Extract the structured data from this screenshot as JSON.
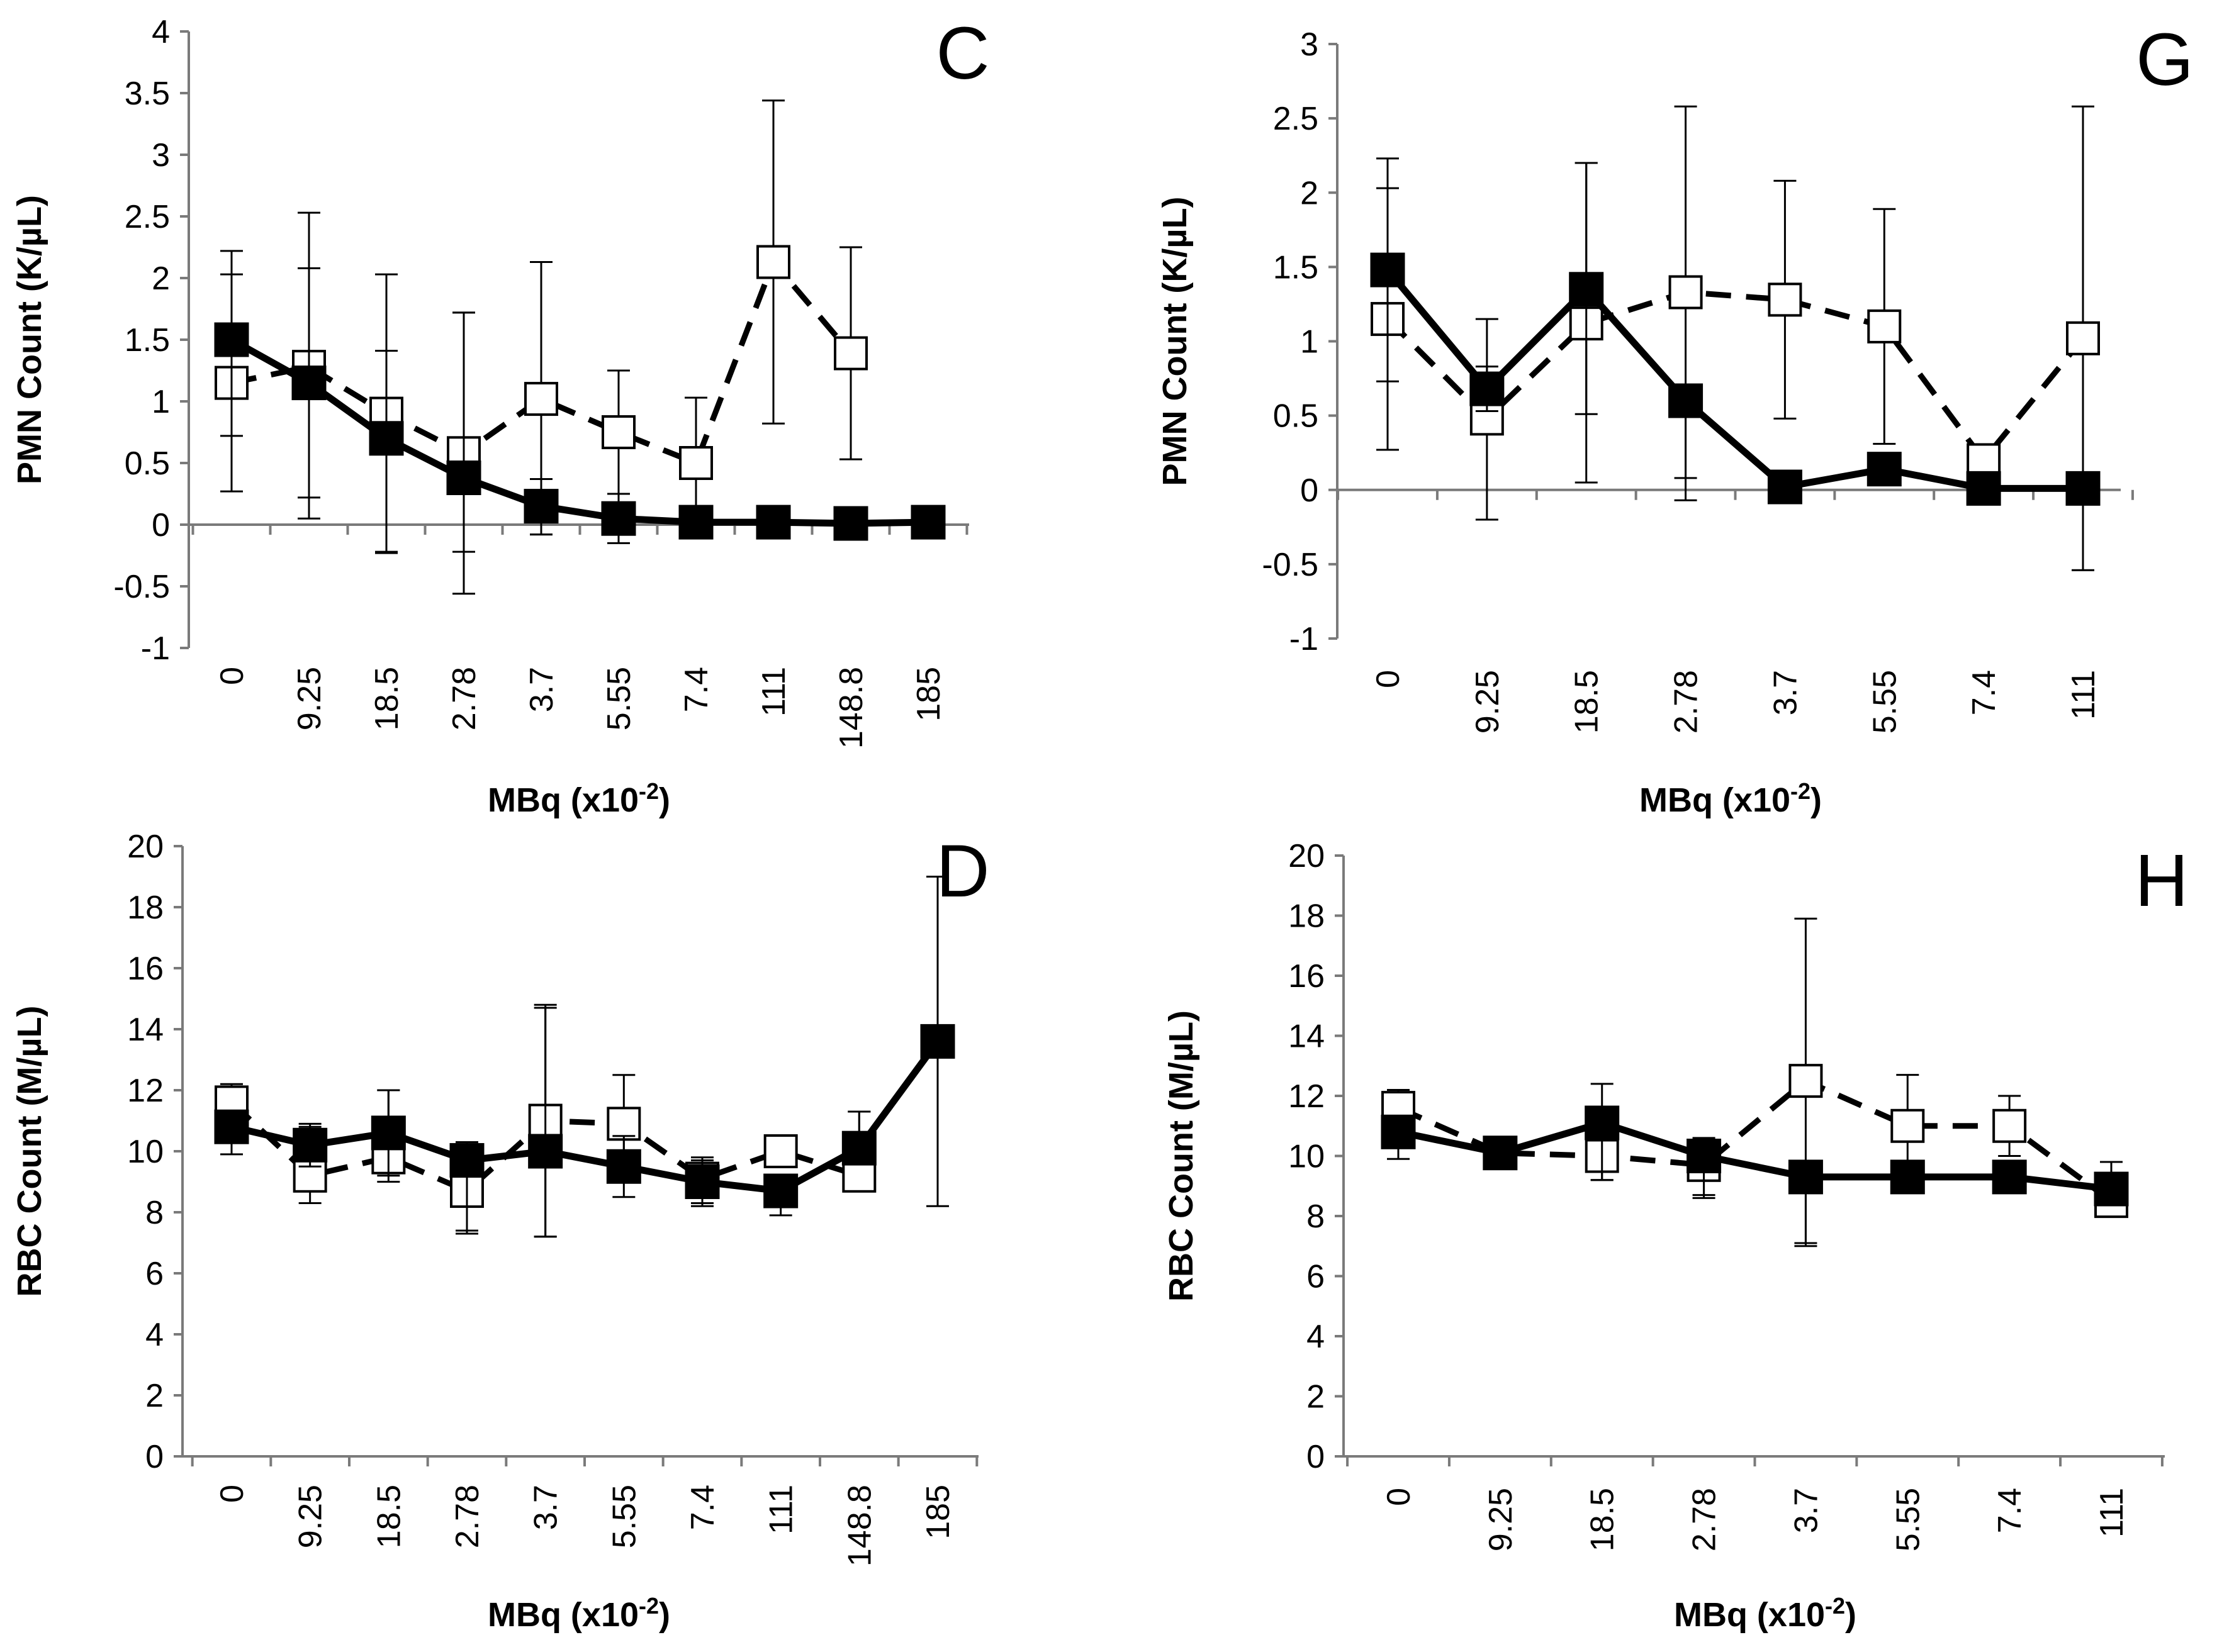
{
  "chart_data": [
    {
      "id": "C",
      "type": "line",
      "panel_label": "C",
      "ylabel": "PMN Count (K/µL)",
      "xlabel_main": "MBq (x10",
      "xlabel_exp": "-2",
      "xlabel_close": ")",
      "categories": [
        "0",
        "9.25",
        "18.5",
        "2.78",
        "3.7",
        "5.55",
        "7.4",
        "111",
        "148.8",
        "185"
      ],
      "ylim": [
        -1,
        4
      ],
      "yticks": [
        "-1",
        "-0.5",
        "0",
        "0.5",
        "1",
        "1.5",
        "2",
        "2.5",
        "3",
        "3.5",
        "4"
      ],
      "series": [
        {
          "name": "filled",
          "style": "solid",
          "marker": "filled",
          "values": [
            1.5,
            1.15,
            0.7,
            0.38,
            0.15,
            0.05,
            0.02,
            0.02,
            0.01,
            0.02
          ],
          "err_up": [
            0.72,
            0.93,
            0.71,
            1.34,
            0.22,
            0.2,
            0.0,
            0.0,
            0.0,
            0.0
          ],
          "err_down": [
            0.78,
            0.93,
            0.92,
            0.94,
            0.23,
            0.2,
            0.0,
            0.0,
            0.0,
            0.0
          ]
        },
        {
          "name": "open",
          "style": "dashed",
          "marker": "open",
          "values": [
            1.15,
            1.28,
            0.9,
            0.58,
            1.02,
            0.75,
            0.5,
            2.13,
            1.39,
            null
          ],
          "err_up": [
            0.88,
            1.25,
            1.13,
            1.14,
            1.11,
            0.5,
            0.53,
            1.31,
            0.86,
            null
          ],
          "err_down": [
            0.88,
            1.23,
            1.13,
            0.8,
            1.1,
            0.5,
            0.53,
            1.31,
            0.86,
            null
          ]
        }
      ]
    },
    {
      "id": "G",
      "type": "line",
      "panel_label": "G",
      "ylabel": "PMN Count (K/µL)",
      "xlabel_main": "MBq (x10",
      "xlabel_exp": "-2",
      "xlabel_close": ")",
      "categories": [
        "0",
        "9.25",
        "18.5",
        "2.78",
        "3.7",
        "5.55",
        "7.4",
        "111"
      ],
      "ylim": [
        -1,
        3
      ],
      "yticks": [
        "-1",
        "-0.5",
        "0",
        "0.5",
        "1",
        "1.5",
        "2",
        "2.5",
        "3"
      ],
      "series": [
        {
          "name": "filled",
          "style": "solid",
          "marker": "filled",
          "values": [
            1.48,
            0.68,
            1.35,
            0.6,
            0.02,
            0.14,
            0.01,
            0.01
          ],
          "err_up": [
            0.75,
            0.15,
            0.85,
            0.0,
            0.0,
            0.0,
            0.0,
            0.0
          ],
          "err_down": [
            0.75,
            0.15,
            0.84,
            0.67,
            0.0,
            0.0,
            0.0,
            0.55
          ]
        },
        {
          "name": "open",
          "style": "dashed",
          "marker": "open",
          "values": [
            1.15,
            0.48,
            1.12,
            1.33,
            1.28,
            1.1,
            0.2,
            1.02
          ],
          "err_up": [
            0.88,
            0.67,
            1.08,
            1.25,
            0.8,
            0.79,
            0.0,
            1.56
          ],
          "err_down": [
            0.88,
            0.68,
            1.07,
            1.25,
            0.8,
            0.79,
            0.0,
            1.56
          ]
        }
      ]
    },
    {
      "id": "D",
      "type": "line",
      "panel_label": "D",
      "ylabel": "RBC  Count (M/µL)",
      "xlabel_main": "MBq (x10",
      "xlabel_exp": "-2",
      "xlabel_close": ")",
      "categories": [
        "0",
        "9.25",
        "18.5",
        "2.78",
        "3.7",
        "5.55",
        "7.4",
        "111",
        "148.8",
        "185"
      ],
      "ylim": [
        0,
        20
      ],
      "yticks": [
        "0",
        "2",
        "4",
        "6",
        "8",
        "10",
        "12",
        "14",
        "16",
        "18",
        "20"
      ],
      "series": [
        {
          "name": "filled",
          "style": "solid",
          "marker": "filled",
          "values": [
            10.8,
            10.2,
            10.6,
            9.7,
            10.0,
            9.5,
            9.0,
            8.7,
            10.1,
            13.6
          ],
          "err_up": [
            0.0,
            0.7,
            1.4,
            0.6,
            4.8,
            1.0,
            0.8,
            0.0,
            1.2,
            5.4
          ],
          "err_down": [
            0.9,
            0.7,
            1.4,
            2.3,
            2.8,
            1.0,
            0.8,
            0.8,
            0.0,
            5.4
          ]
        },
        {
          "name": "open",
          "style": "dashed",
          "marker": "open",
          "values": [
            11.6,
            9.2,
            9.8,
            8.7,
            11.0,
            10.9,
            9.1,
            10.0,
            9.2,
            null
          ],
          "err_up": [
            0.6,
            1.6,
            2.2,
            1.0,
            3.7,
            1.6,
            0.6,
            0.0,
            2.1,
            null
          ],
          "err_down": [
            0.6,
            0.9,
            0.8,
            1.4,
            3.8,
            1.2,
            0.8,
            0.0,
            0.0,
            null
          ]
        }
      ]
    },
    {
      "id": "H",
      "type": "line",
      "panel_label": "H",
      "ylabel": "RBC  Count (M/µL)",
      "xlabel_main": "MBq (x10",
      "xlabel_exp": "-2",
      "xlabel_close": ")",
      "categories": [
        "0",
        "9.25",
        "18.5",
        "2.78",
        "3.7",
        "5.55",
        "7.4",
        "111"
      ],
      "ylim": [
        0,
        20
      ],
      "yticks": [
        "0",
        "2",
        "4",
        "6",
        "8",
        "10",
        "12",
        "14",
        "16",
        "18",
        "20"
      ],
      "series": [
        {
          "name": "filled",
          "style": "solid",
          "marker": "filled",
          "values": [
            10.8,
            10.1,
            11.1,
            10.0,
            9.3,
            9.3,
            9.3,
            8.9
          ],
          "err_up": [
            0.0,
            0.0,
            1.3,
            0.6,
            0.0,
            0.0,
            0.0,
            0.9
          ],
          "err_down": [
            0.9,
            0.0,
            1.9,
            1.3,
            2.3,
            0.0,
            0.0,
            0.0
          ]
        },
        {
          "name": "open",
          "style": "dashed",
          "marker": "open",
          "values": [
            11.6,
            10.1,
            10.0,
            9.7,
            12.5,
            11.0,
            11.0,
            8.5
          ],
          "err_up": [
            0.6,
            0.0,
            0.0,
            0.5,
            5.4,
            1.7,
            1.0,
            0.0
          ],
          "err_down": [
            0.6,
            0.0,
            0.8,
            1.1,
            5.4,
            1.6,
            1.0,
            0.0
          ]
        }
      ]
    }
  ]
}
